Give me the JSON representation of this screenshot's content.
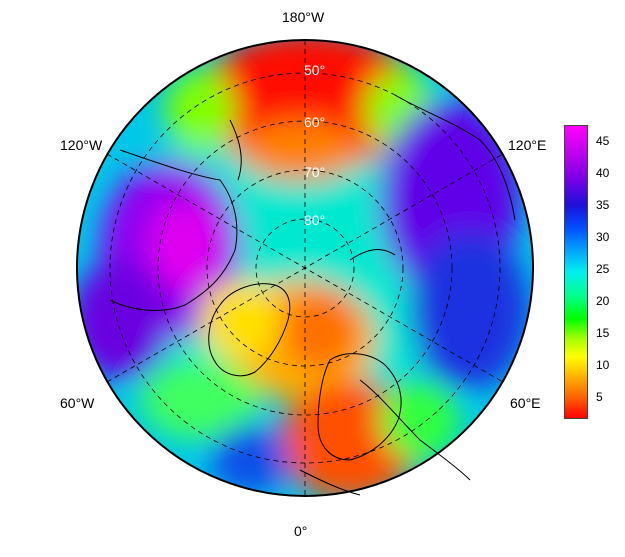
{
  "map": {
    "projection": "north-polar-stereographic",
    "longitude_labels": [
      "180°W",
      "120°W",
      "120°E",
      "60°W",
      "60°E",
      "0°"
    ],
    "latitude_labels": [
      "50°",
      "60°",
      "70°",
      "80°"
    ]
  },
  "colorbar": {
    "ticks": [
      "45",
      "40",
      "35",
      "30",
      "25",
      "20",
      "15",
      "10",
      "5"
    ],
    "range": [
      1,
      47
    ],
    "palette": [
      "#ff0000",
      "#ff6000",
      "#ffb000",
      "#ffff00",
      "#a8ff00",
      "#00ff00",
      "#00ff90",
      "#00f0f0",
      "#00a8ff",
      "#0050ff",
      "#1e10d8",
      "#7a00e6",
      "#c800f0",
      "#ff00ff"
    ]
  }
}
